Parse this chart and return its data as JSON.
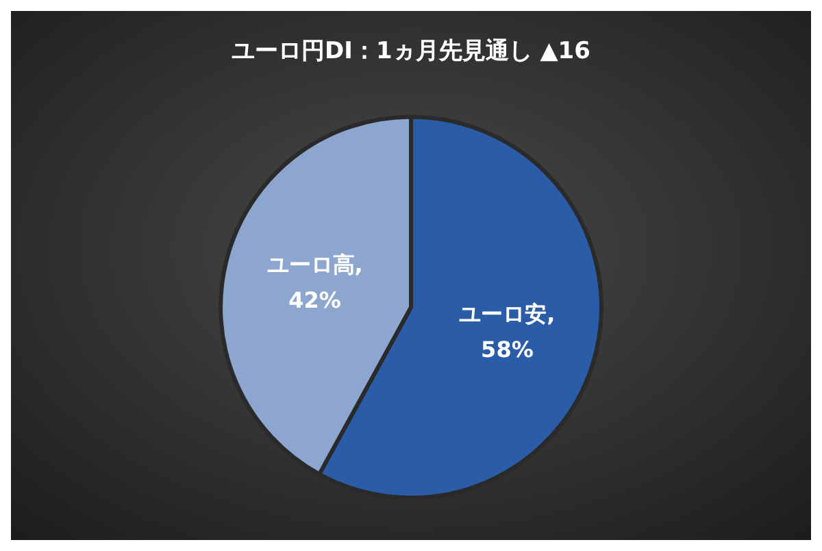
{
  "chart_data": {
    "type": "pie",
    "title": "ユーロ円DI：1ヵ月先見通し ▲16",
    "categories": [
      "ユーロ安",
      "ユーロ高"
    ],
    "values": [
      58,
      42
    ],
    "colors": [
      "#2b5ca8",
      "#8da6d0"
    ],
    "value_labels": [
      ",\n58%",
      ",\n42%"
    ],
    "legend": false
  }
}
